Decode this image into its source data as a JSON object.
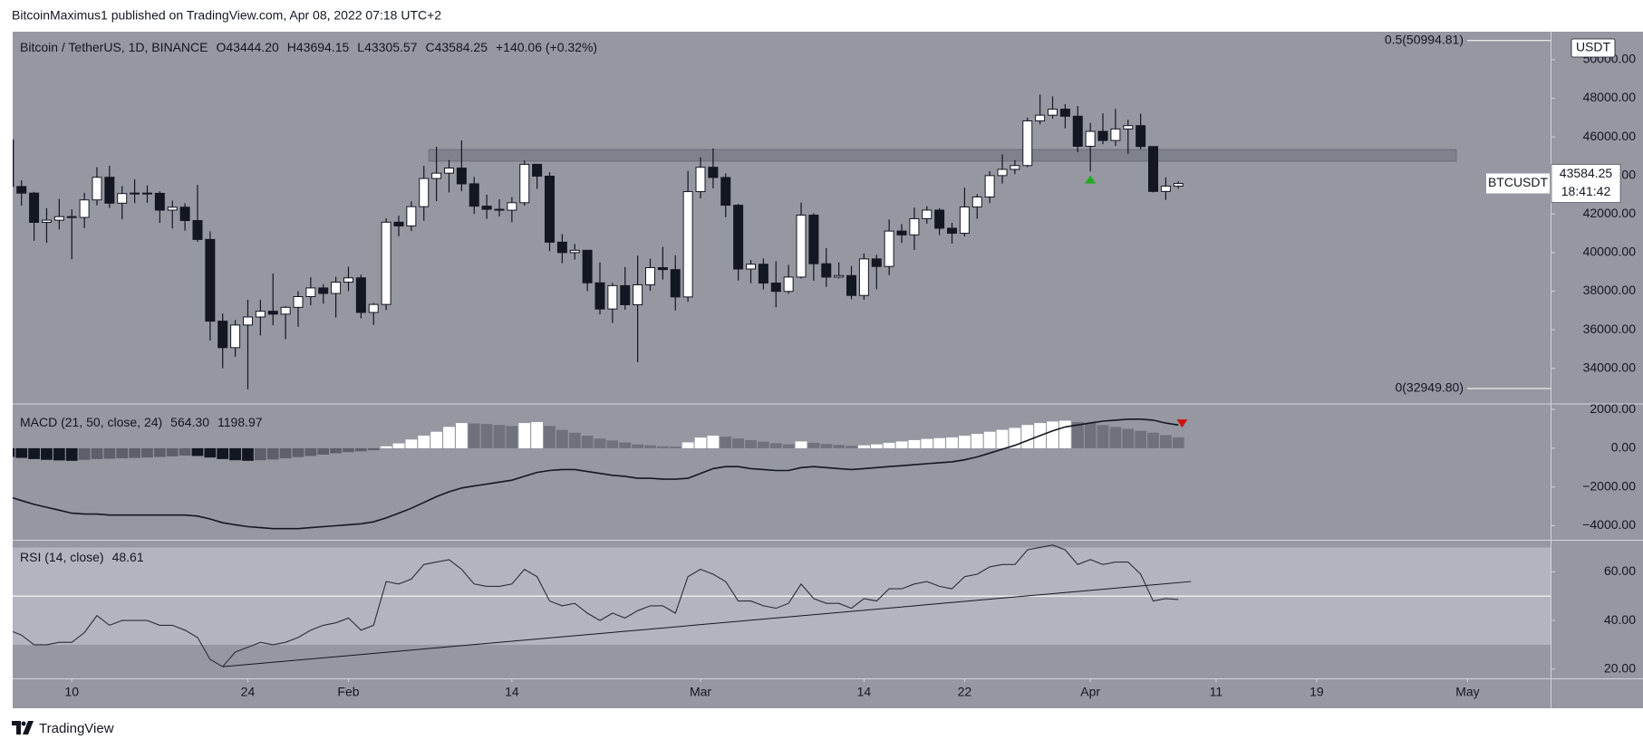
{
  "header": {
    "text": "BitcoinMaximus1 published on TradingView.com, Apr 08, 2022 07:18 UTC+2"
  },
  "footer": {
    "text": "TradingView"
  },
  "chart_data": [
    {
      "type": "candlestick",
      "title": "Bitcoin / TetherUS, 1D, BINANCE",
      "header_values": [
        "O43444.20",
        "H43694.15",
        "L43305.57",
        "C43584.25",
        "+140.06 (+0.32%)"
      ],
      "symbol": "BTCUSDT",
      "price_label": "43584.25",
      "countdown": "18:41:42",
      "currency": "USDT",
      "colors": {
        "up": "#ffffff",
        "down": "#131722",
        "zone": "#787b86",
        "marker": "#22ab22"
      },
      "open": [
        45833,
        43425,
        43082,
        41566,
        41679,
        41864,
        41822,
        42730,
        43902,
        42560,
        43059,
        43084,
        43071,
        42201,
        42352,
        41660,
        40680,
        36445,
        35071,
        36244,
        36660,
        36958,
        36809,
        37160,
        37716,
        38166,
        37881,
        38466,
        38690,
        36896,
        37311,
        41574,
        41382,
        42380,
        43840,
        44118,
        44381,
        43565,
        42407,
        42244,
        42197,
        42586,
        44575,
        43961,
        40538,
        40000,
        40118,
        38431,
        37075,
        38286,
        37296,
        38328,
        39219,
        39116,
        37700,
        43160,
        44421,
        43892,
        42454,
        39148,
        39397,
        38420,
        37988,
        38730,
        41941,
        39422,
        38729,
        38807,
        37777,
        39671,
        39280,
        41114,
        40917,
        41757,
        42201,
        41262,
        41002,
        42364,
        42882,
        43991,
        44313,
        44511,
        46827,
        47122,
        47434,
        47067,
        45510,
        46283,
        45811,
        46407,
        46580,
        45497,
        43170,
        43444.2
      ],
      "high": [
        47070,
        43748,
        43145,
        42300,
        42786,
        42248,
        43100,
        44423,
        44500,
        43448,
        43800,
        43475,
        43176,
        42691,
        42559,
        43505,
        41100,
        36835,
        36499,
        37550,
        37545,
        38919,
        37234,
        38000,
        38720,
        38359,
        38744,
        39265,
        38855,
        37387,
        41772,
        41913,
        42656,
        44500,
        45492,
        44798,
        45821,
        43920,
        43000,
        42760,
        42876,
        44770,
        44583,
        44164,
        40959,
        40444,
        40132,
        39494,
        38429,
        39249,
        39843,
        39683,
        40300,
        39855,
        44225,
        44949,
        45400,
        44101,
        42527,
        39613,
        39693,
        39547,
        39362,
        42594,
        42039,
        40236,
        39486,
        39310,
        39947,
        39887,
        41718,
        41478,
        42325,
        42400,
        42296,
        41544,
        43361,
        43025,
        44220,
        45094,
        44792,
        46999,
        48190,
        48096,
        47700,
        47600,
        46720,
        47213,
        47444,
        46890,
        47200,
        45507,
        43900,
        43694.15
      ],
      "low": [
        42500,
        42430,
        40610,
        40501,
        41200,
        39650,
        41268,
        42450,
        42311,
        41725,
        42555,
        42581,
        41540,
        41250,
        41138,
        40553,
        35440,
        34008,
        34601,
        32917,
        35701,
        36234,
        35507,
        36155,
        37268,
        37351,
        36632,
        38000,
        36586,
        36250,
        37026,
        40843,
        41116,
        41645,
        42666,
        43117,
        43187,
        42000,
        41748,
        41870,
        41570,
        42427,
        43310,
        40073,
        39450,
        39639,
        38000,
        36800,
        36350,
        37036,
        34322,
        38014,
        38600,
        37000,
        37450,
        42809,
        43334,
        41832,
        38550,
        38407,
        38088,
        37155,
        37867,
        38656,
        38539,
        38223,
        38660,
        37578,
        37555,
        38098,
        38828,
        40500,
        40135,
        41499,
        40911,
        40467,
        40840,
        41751,
        42560,
        43579,
        44071,
        44422,
        46650,
        46950,
        46445,
        45200,
        44200,
        45620,
        45530,
        45118,
        45353,
        43121,
        42727,
        43305.57
      ],
      "close": [
        43425,
        43082,
        41566,
        41679,
        41864,
        41822,
        42730,
        43902,
        42560,
        43059,
        43084,
        43071,
        42201,
        42352,
        41660,
        40680,
        36445,
        35071,
        36244,
        36660,
        36958,
        36809,
        37160,
        37716,
        38166,
        37881,
        38466,
        38690,
        36896,
        37311,
        41574,
        41382,
        42380,
        43840,
        44118,
        44381,
        43565,
        42407,
        42244,
        42197,
        42586,
        44575,
        43961,
        40538,
        40000,
        40118,
        38431,
        37075,
        38286,
        37296,
        38328,
        39219,
        39116,
        37700,
        43160,
        44421,
        43892,
        42454,
        39148,
        39397,
        38420,
        37988,
        38730,
        41941,
        39422,
        38729,
        38807,
        37777,
        39671,
        39280,
        41114,
        40917,
        41757,
        42201,
        41262,
        41002,
        42364,
        42882,
        43991,
        44313,
        44511,
        46827,
        47122,
        47434,
        47067,
        45510,
        46283,
        45811,
        46407,
        46580,
        45497,
        43170,
        43444.2,
        43584.25
      ],
      "xlim": [
        0.3,
        122.6
      ],
      "xticks": [
        {
          "value": 5,
          "label": "10"
        },
        {
          "value": 19,
          "label": "24"
        },
        {
          "value": 27,
          "label": "Feb"
        },
        {
          "value": 40,
          "label": "14"
        },
        {
          "value": 55,
          "label": "Mar"
        },
        {
          "value": 68,
          "label": "14"
        },
        {
          "value": 76,
          "label": "22"
        },
        {
          "value": 86,
          "label": "Apr"
        },
        {
          "value": 96,
          "label": "11"
        },
        {
          "value": 104,
          "label": "19"
        },
        {
          "value": 116,
          "label": "May"
        }
      ],
      "ylim": [
        32200,
        51450
      ],
      "yticks": [
        {
          "value": 34000,
          "label": "34000.00"
        },
        {
          "value": 36000,
          "label": "36000.00"
        },
        {
          "value": 38000,
          "label": "38000.00"
        },
        {
          "value": 40000,
          "label": "40000.00"
        },
        {
          "value": 42000,
          "label": "42000.00"
        },
        {
          "value": 44000,
          "label": "44000.00"
        },
        {
          "value": 46000,
          "label": "46000.00"
        },
        {
          "value": 48000,
          "label": "48000.00"
        },
        {
          "value": 50000,
          "label": "50000.00"
        }
      ],
      "fib_levels": [
        {
          "value": 50994.81,
          "label": "0.5(50994.81)"
        },
        {
          "value": 32949.8,
          "label": "0(32949.80)"
        }
      ],
      "zone": {
        "x": [
          33.4,
          115.1
        ],
        "y": [
          44740,
          45340
        ]
      },
      "marker": {
        "x": 86,
        "y": 43767
      }
    },
    {
      "type": "macd",
      "title": "MACD (21, 50, close, 24)",
      "header_values": [
        "564.30",
        "1198.97"
      ],
      "colors": {
        "pos_up": "#ffffff",
        "pos_down": "#6f727c",
        "neg_down": "#131722",
        "neg_up": "#5d606b",
        "line": "#131722",
        "marker": "#d01010"
      },
      "histogram": [
        -450,
        -500,
        -560,
        -600,
        -630,
        -650,
        -600,
        -560,
        -540,
        -520,
        -500,
        -480,
        -450,
        -420,
        -380,
        -400,
        -480,
        -560,
        -620,
        -650,
        -620,
        -580,
        -520,
        -460,
        -400,
        -330,
        -260,
        -200,
        -160,
        -100,
        100,
        250,
        450,
        650,
        850,
        1100,
        1300,
        1280,
        1250,
        1200,
        1150,
        1300,
        1350,
        1150,
        950,
        800,
        650,
        500,
        400,
        300,
        200,
        150,
        100,
        80,
        300,
        550,
        650,
        600,
        500,
        420,
        340,
        260,
        200,
        350,
        280,
        220,
        170,
        120,
        150,
        200,
        280,
        350,
        420,
        480,
        520,
        560,
        650,
        740,
        850,
        950,
        1050,
        1200,
        1300,
        1380,
        1420,
        1350,
        1300,
        1200,
        1100,
        1000,
        900,
        800,
        680,
        564.3
      ],
      "line": [
        -2500,
        -2700,
        -2900,
        -3050,
        -3200,
        -3350,
        -3400,
        -3400,
        -3450,
        -3450,
        -3450,
        -3450,
        -3450,
        -3450,
        -3450,
        -3500,
        -3650,
        -3850,
        -3950,
        -4050,
        -4100,
        -4150,
        -4150,
        -4150,
        -4100,
        -4050,
        -4000,
        -3950,
        -3900,
        -3800,
        -3600,
        -3350,
        -3100,
        -2800,
        -2500,
        -2250,
        -2050,
        -1950,
        -1850,
        -1750,
        -1650,
        -1450,
        -1250,
        -1150,
        -1100,
        -1100,
        -1200,
        -1300,
        -1400,
        -1450,
        -1550,
        -1550,
        -1600,
        -1600,
        -1550,
        -1300,
        -1050,
        -950,
        -950,
        -1050,
        -1100,
        -1150,
        -1150,
        -1000,
        -950,
        -1000,
        -1050,
        -1100,
        -1050,
        -1000,
        -950,
        -900,
        -850,
        -800,
        -750,
        -700,
        -600,
        -450,
        -250,
        -50,
        150,
        400,
        650,
        900,
        1100,
        1200,
        1300,
        1400,
        1450,
        1500,
        1500,
        1450,
        1300,
        1198.97
      ],
      "ylim": [
        -4680,
        2240
      ],
      "yticks": [
        {
          "value": -4000,
          "label": "−4000.00"
        },
        {
          "value": -2000,
          "label": "−2000.00"
        },
        {
          "value": 0,
          "label": "0.00"
        },
        {
          "value": 2000,
          "label": "2000.00"
        }
      ],
      "marker": {
        "x": 93.3,
        "y": 1300
      }
    },
    {
      "type": "rsi",
      "title": "RSI (14, close)",
      "header_values": [
        "48.61"
      ],
      "colors": {
        "line": "#2a2e39",
        "band": "#b2b5be",
        "midline": "#ffffff",
        "trendline": "#131722"
      },
      "values": [
        36,
        34,
        30,
        30,
        31,
        31,
        35,
        42,
        38,
        40,
        40,
        40,
        38,
        38,
        36,
        33,
        24,
        21,
        27,
        29,
        31,
        30,
        31,
        33,
        36,
        38,
        39,
        41,
        36,
        38,
        56,
        55,
        57,
        63,
        64,
        65,
        61,
        55,
        54,
        54,
        55,
        61,
        58,
        48,
        46,
        47,
        43,
        40,
        43,
        41,
        44,
        46,
        46,
        43,
        58,
        61,
        59,
        56,
        48,
        48,
        46,
        45,
        47,
        55,
        49,
        47,
        47,
        45,
        49,
        48,
        53,
        53,
        55,
        56,
        54,
        53,
        58,
        59,
        62,
        63,
        63,
        69,
        70,
        71,
        69,
        63,
        65,
        63,
        64,
        64,
        59,
        48,
        49,
        48.61
      ],
      "band": [
        30,
        70
      ],
      "midline": 50,
      "trendline": {
        "x": [
          17,
          94
        ],
        "y": [
          21,
          56
        ]
      },
      "ylim": [
        16.2,
        72.4
      ],
      "yticks": [
        {
          "value": 20,
          "label": "20.00"
        },
        {
          "value": 40,
          "label": "40.00"
        },
        {
          "value": 60,
          "label": "60.00"
        }
      ]
    }
  ]
}
